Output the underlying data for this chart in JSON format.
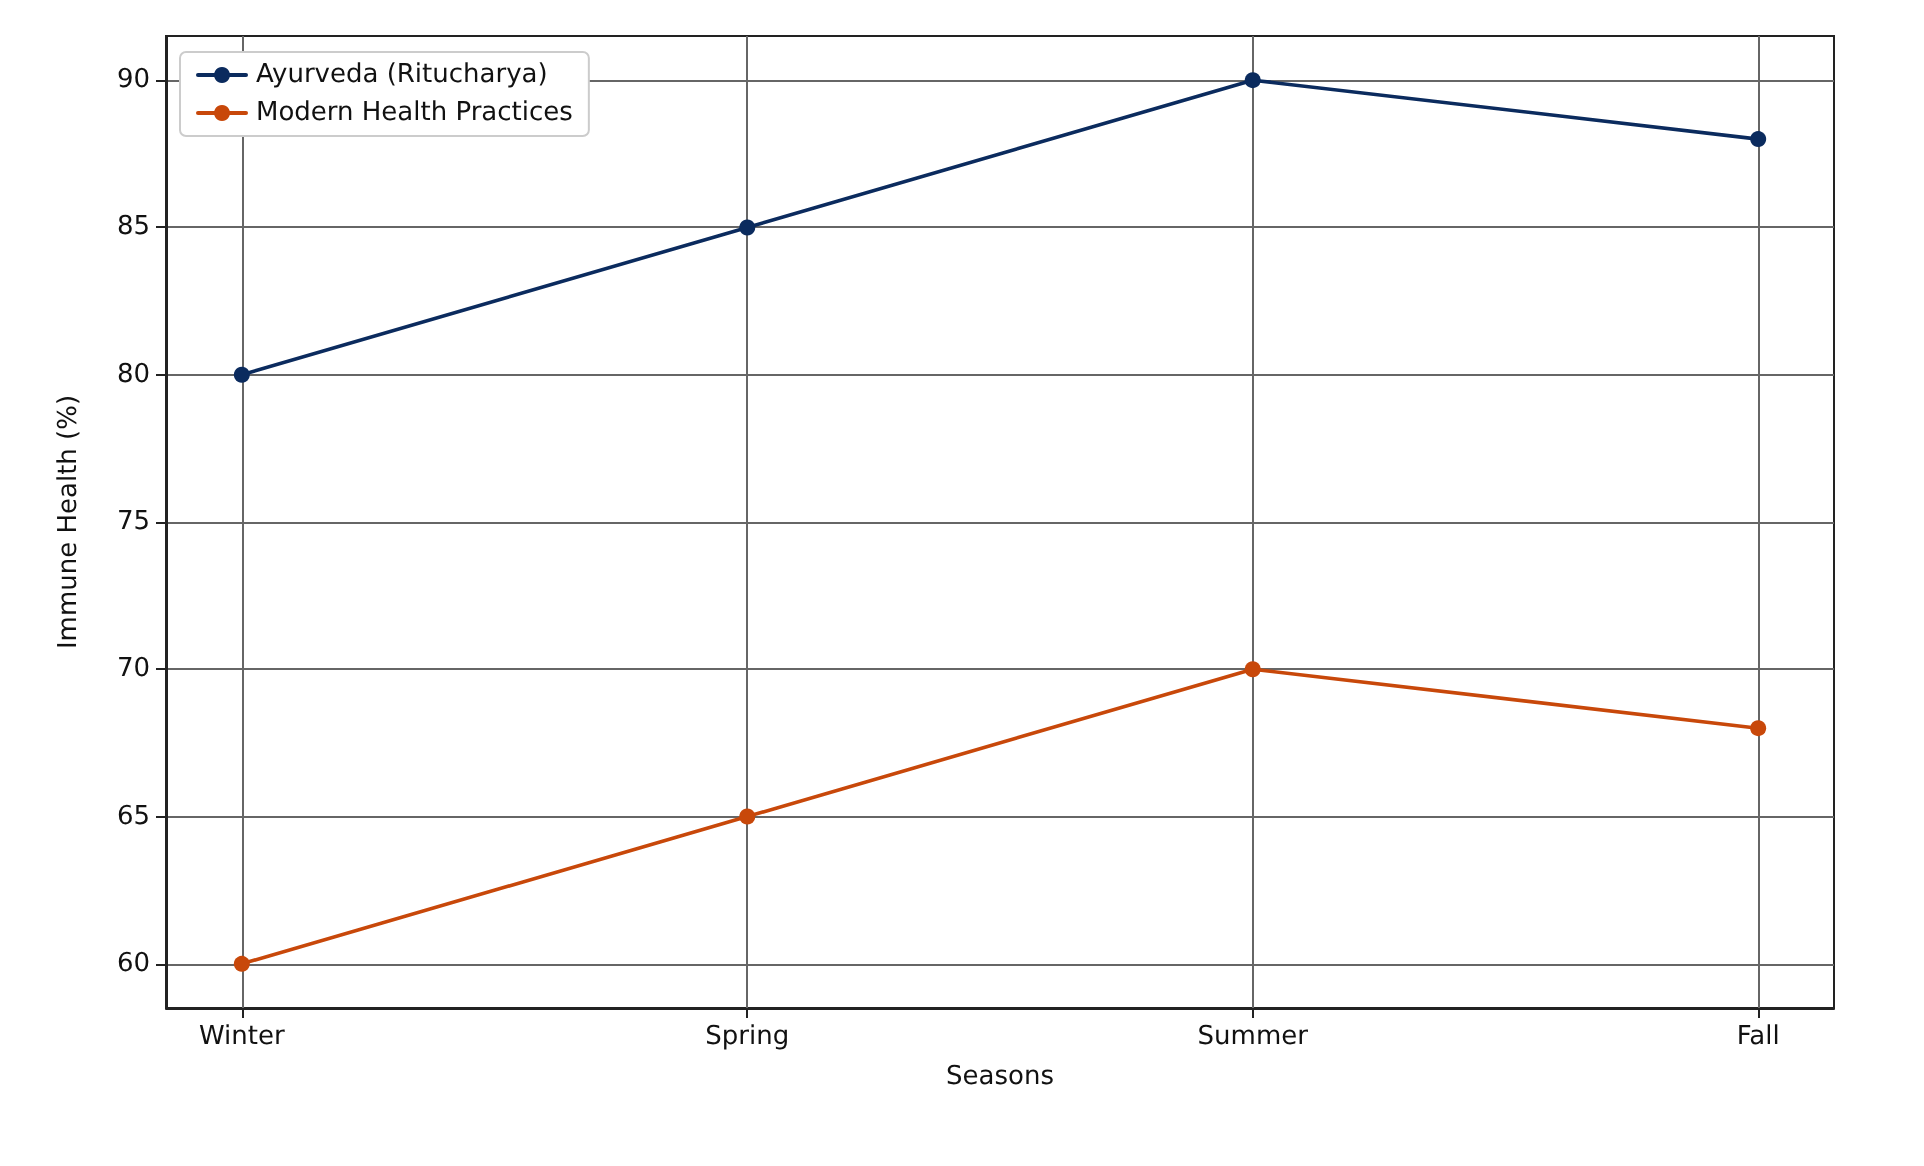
{
  "chart_data": {
    "type": "line",
    "xlabel": "Seasons",
    "ylabel": "Immune Health (%)",
    "categories": [
      "Winter",
      "Spring",
      "Summer",
      "Fall"
    ],
    "series": [
      {
        "name": "Ayurveda (Ritucharya)",
        "color": "#0b2b5e",
        "values": [
          80,
          85,
          90,
          88
        ]
      },
      {
        "name": "Modern Health Practices",
        "color": "#c8480a",
        "values": [
          60,
          65,
          70,
          68
        ]
      }
    ],
    "ylim": [
      58.5,
      91.5
    ],
    "yticks": [
      60,
      65,
      70,
      75,
      80,
      85,
      90
    ],
    "grid": true,
    "legend": "top left",
    "marker": "circle",
    "line_style": "solid"
  }
}
